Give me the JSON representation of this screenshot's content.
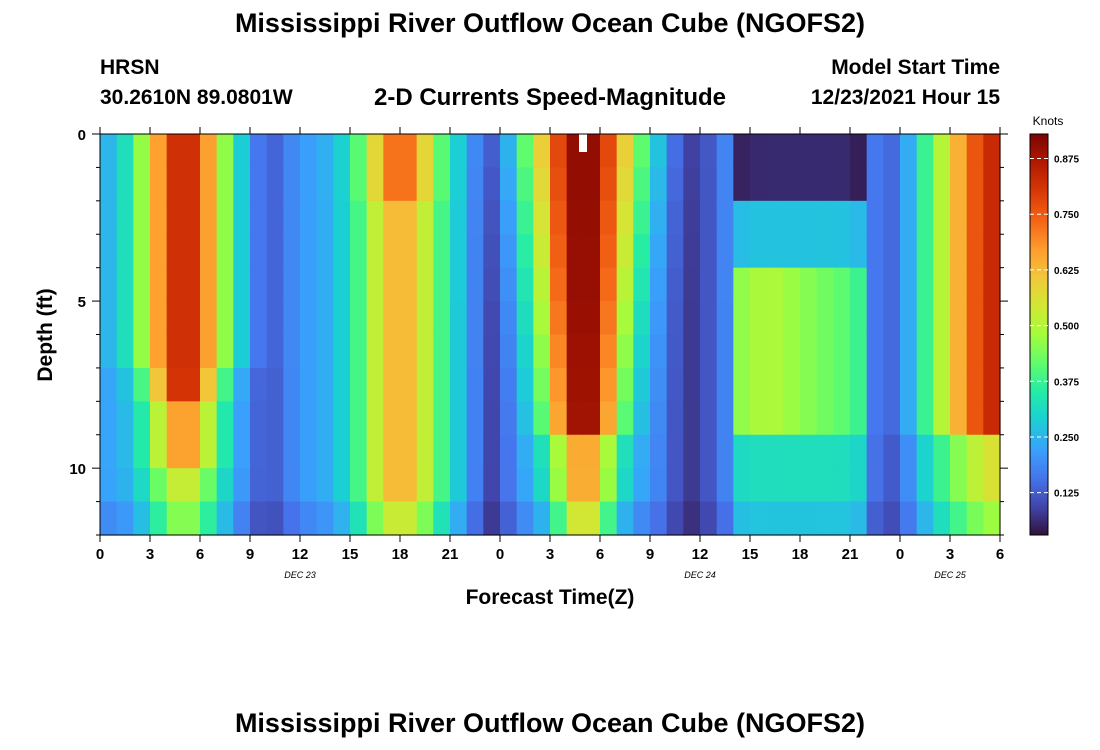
{
  "header": {
    "title": "Mississippi River Outflow Ocean Cube (NGOFS2)",
    "station": "HRSN",
    "coords": "30.2610N  89.0801W",
    "model_label": "Model Start Time",
    "model_time": "12/23/2021 Hour 15",
    "footer_title": "Mississippi River Outflow Ocean Cube (NGOFS2)"
  },
  "chart_data": {
    "type": "heatmap",
    "title": "2-D Currents Speed-Magnitude",
    "xlabel": "Forecast Time(Z)",
    "ylabel": "Depth (ft)",
    "colorbar_label": "Knots",
    "x_ticks": [
      "0",
      "3",
      "6",
      "9",
      "12",
      "15",
      "18",
      "21",
      "0",
      "3",
      "6",
      "9",
      "12",
      "15",
      "18",
      "21",
      "0",
      "3",
      "6"
    ],
    "date_labels": [
      "DEC 23",
      "DEC 24",
      "DEC 25"
    ],
    "y_ticks": [
      "0",
      "5",
      "10"
    ],
    "ylim": [
      0,
      12
    ],
    "colorbar_ticks": [
      "0.875",
      "0.750",
      "0.625",
      "0.500",
      "0.375",
      "0.250",
      "0.125"
    ],
    "colorbar_values": [
      0.875,
      0.75,
      0.625,
      0.5,
      0.375,
      0.25,
      0.125
    ],
    "value_range": [
      0.03,
      0.93
    ],
    "forecast_hours": 54,
    "depth_levels": 12,
    "colors": {
      "frame": "#000000",
      "colormap": [
        "#30123b",
        "#4145ab",
        "#4675ed",
        "#39a2fc",
        "#1bcfd4",
        "#24eca6",
        "#61fc6c",
        "#a4fc3b",
        "#d1e834",
        "#f3c63a",
        "#fe9b2d",
        "#f36315",
        "#d93806",
        "#b11901",
        "#7a0403"
      ]
    }
  }
}
